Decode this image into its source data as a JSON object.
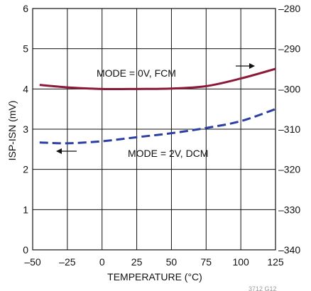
{
  "chart_data": {
    "type": "line",
    "xlabel": "TEMPERATURE (°C)",
    "ylabel": "ISP-ISN (mV)",
    "y2label": "",
    "xlim": [
      -50,
      125
    ],
    "ylim": [
      0,
      6
    ],
    "y2lim": [
      -340,
      -280
    ],
    "xticks": [
      "–50",
      "–25",
      "0",
      "25",
      "50",
      "75",
      "100",
      "125"
    ],
    "yticks": [
      "0",
      "1",
      "2",
      "3",
      "4",
      "5",
      "6"
    ],
    "y2ticks": [
      "–340",
      "–330",
      "–320",
      "–310",
      "–300",
      "–290",
      "–280"
    ],
    "grid": true,
    "series": [
      {
        "name": "MODE = 0V, FCM",
        "axis": "right",
        "color": "#8b1a3a",
        "style": "solid",
        "x": [
          -45,
          -25,
          0,
          25,
          50,
          75,
          100,
          125
        ],
        "y": [
          -299.0,
          -299.6,
          -300.0,
          -300.0,
          -299.9,
          -299.3,
          -297.4,
          -295.0
        ]
      },
      {
        "name": "MODE = 2V, DCM",
        "axis": "left",
        "color": "#2b3fa3",
        "style": "dashed",
        "x": [
          -45,
          -25,
          0,
          25,
          50,
          75,
          100,
          125
        ],
        "y": [
          2.67,
          2.65,
          2.7,
          2.8,
          2.9,
          3.03,
          3.2,
          3.5
        ]
      }
    ],
    "annotations": [
      "MODE = 0V, FCM",
      "MODE = 2V, DCM"
    ],
    "figure_code": "3712 G12"
  }
}
